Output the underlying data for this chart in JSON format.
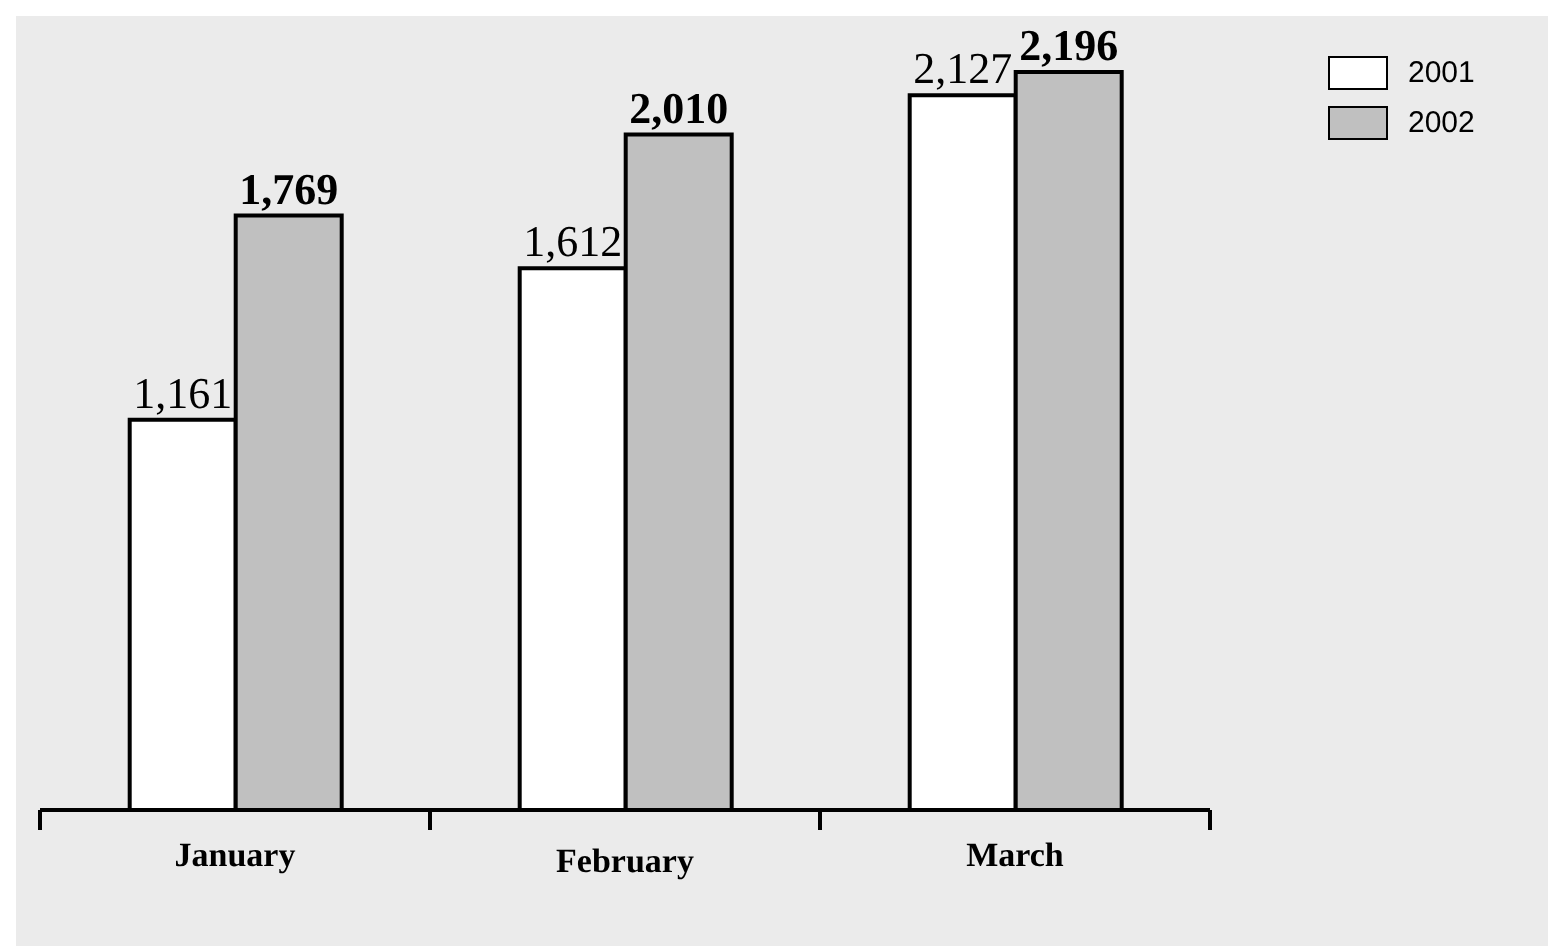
{
  "chart_data": {
    "type": "bar",
    "categories": [
      "January",
      "February",
      "March"
    ],
    "series": [
      {
        "name": "2001",
        "color": "#ffffff",
        "values": [
          1161,
          1612,
          2127
        ],
        "value_labels": [
          "1,161",
          "1,612",
          "2,127"
        ]
      },
      {
        "name": "2002",
        "color": "#c0c0c0",
        "values": [
          1769,
          2010,
          2196
        ],
        "value_labels": [
          "1,769",
          "2,010",
          "2,196"
        ]
      }
    ],
    "legend": "top right",
    "tick_labels": "x",
    "grid": false
  }
}
